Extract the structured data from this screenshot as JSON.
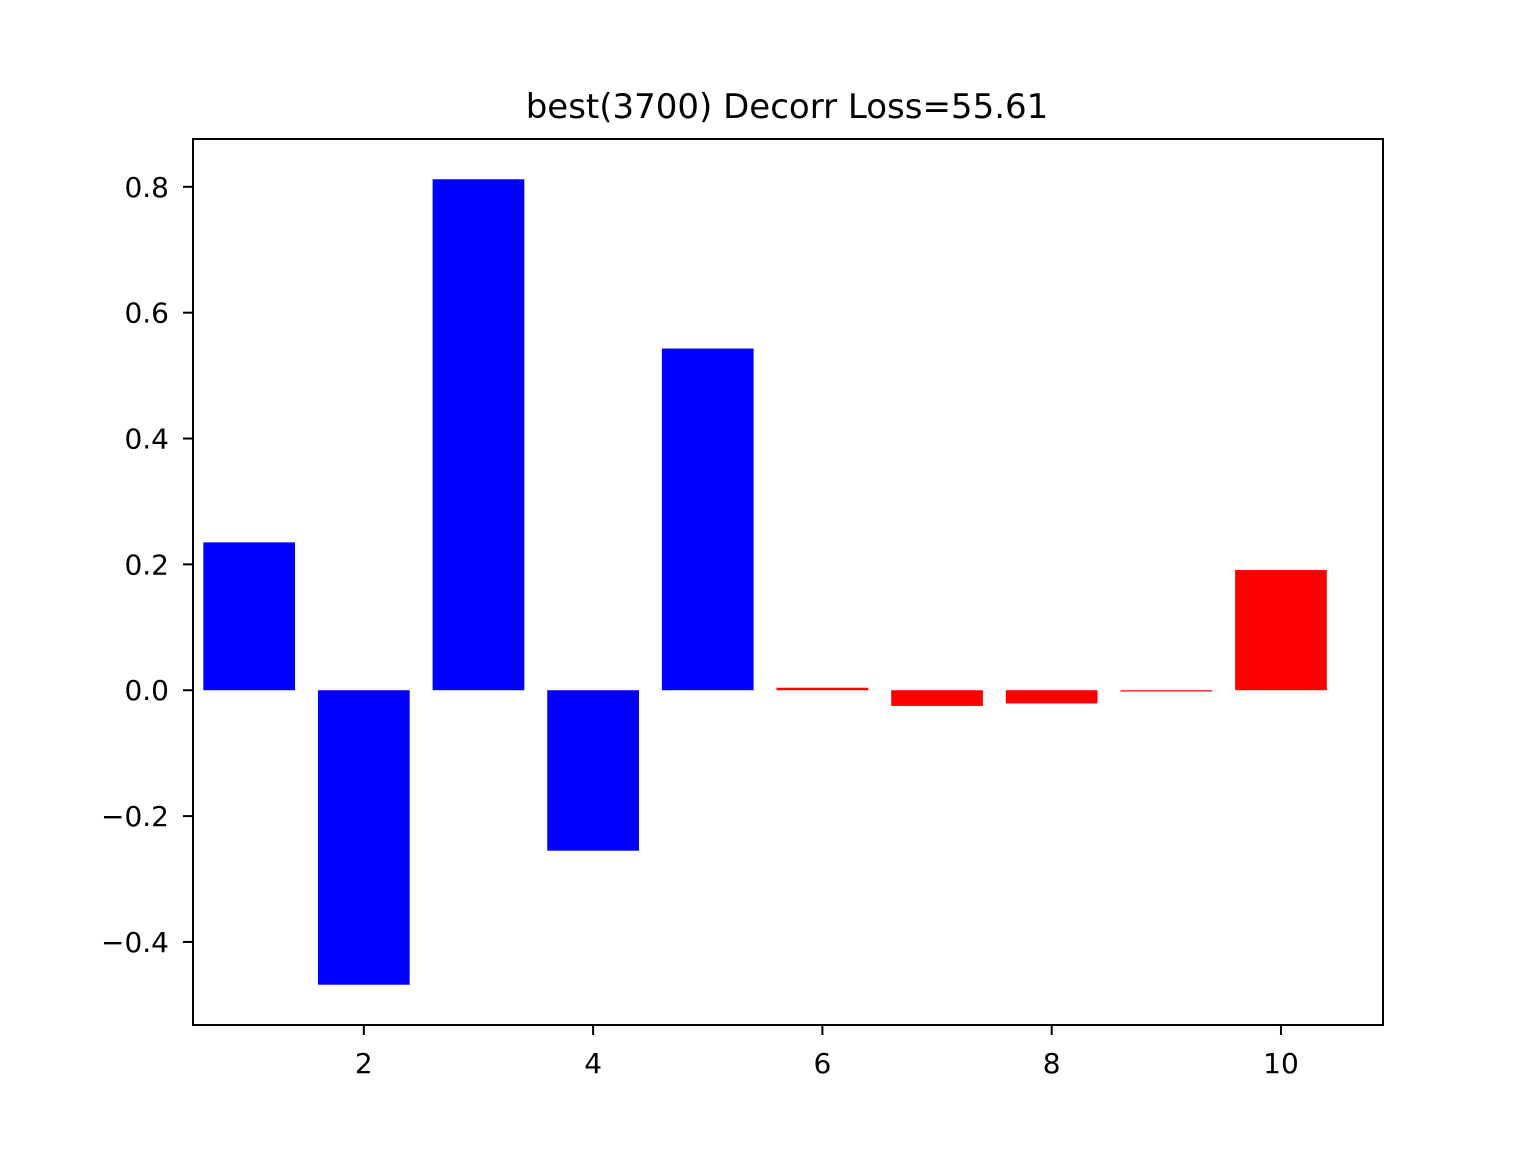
{
  "chart_data": {
    "type": "bar",
    "title": "best(3700) Decorr Loss=55.61",
    "xlabel": "",
    "ylabel": "",
    "x": [
      1,
      2,
      3,
      4,
      5,
      6,
      7,
      8,
      9,
      10
    ],
    "values": [
      0.235,
      -0.468,
      0.812,
      -0.255,
      0.543,
      0.004,
      -0.025,
      -0.021,
      -0.002,
      0.191
    ],
    "colors": [
      "#0000ff",
      "#0000ff",
      "#0000ff",
      "#0000ff",
      "#0000ff",
      "#ff0000",
      "#ff0000",
      "#ff0000",
      "#ff0000",
      "#ff0000"
    ],
    "xlim": [
      0.51,
      10.89
    ],
    "ylim": [
      -0.532,
      0.876
    ],
    "xticks": [
      2,
      4,
      6,
      8,
      10
    ],
    "xtick_labels": [
      "2",
      "4",
      "6",
      "8",
      "10"
    ],
    "yticks": [
      -0.4,
      -0.2,
      0.0,
      0.2,
      0.4,
      0.6,
      0.8
    ],
    "ytick_labels": [
      "−0.4",
      "−0.2",
      "0.0",
      "0.2",
      "0.4",
      "0.6",
      "0.8"
    ],
    "bar_width": 0.8,
    "grid": false,
    "legend": "none"
  }
}
